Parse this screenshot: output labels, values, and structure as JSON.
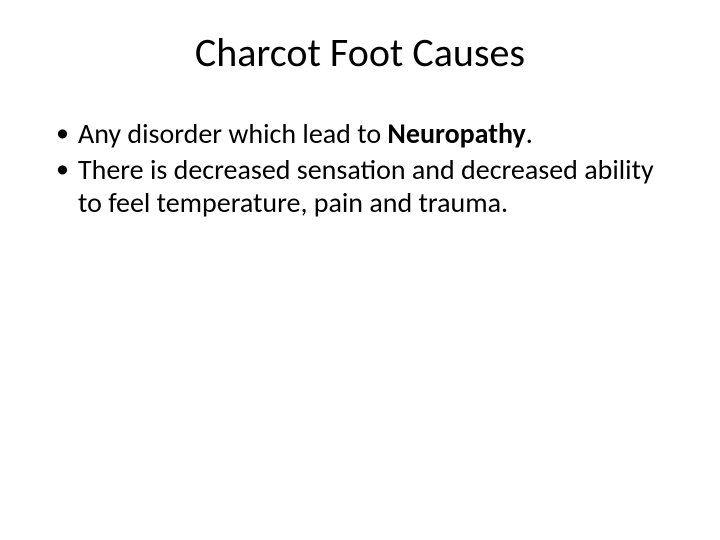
{
  "slide": {
    "title": "Charcot Foot Causes",
    "bullets": [
      {
        "prefix": "Any disorder which lead to ",
        "bold": "Neuropathy",
        "suffix": "."
      },
      {
        "text": "There is decreased sensation and decreased ability to feel temperature, pain and trauma."
      }
    ]
  },
  "style": {
    "background_color": "#ffffff",
    "text_color": "#000000",
    "title_fontsize": 40,
    "body_fontsize": 28,
    "font_family": "Calibri"
  }
}
